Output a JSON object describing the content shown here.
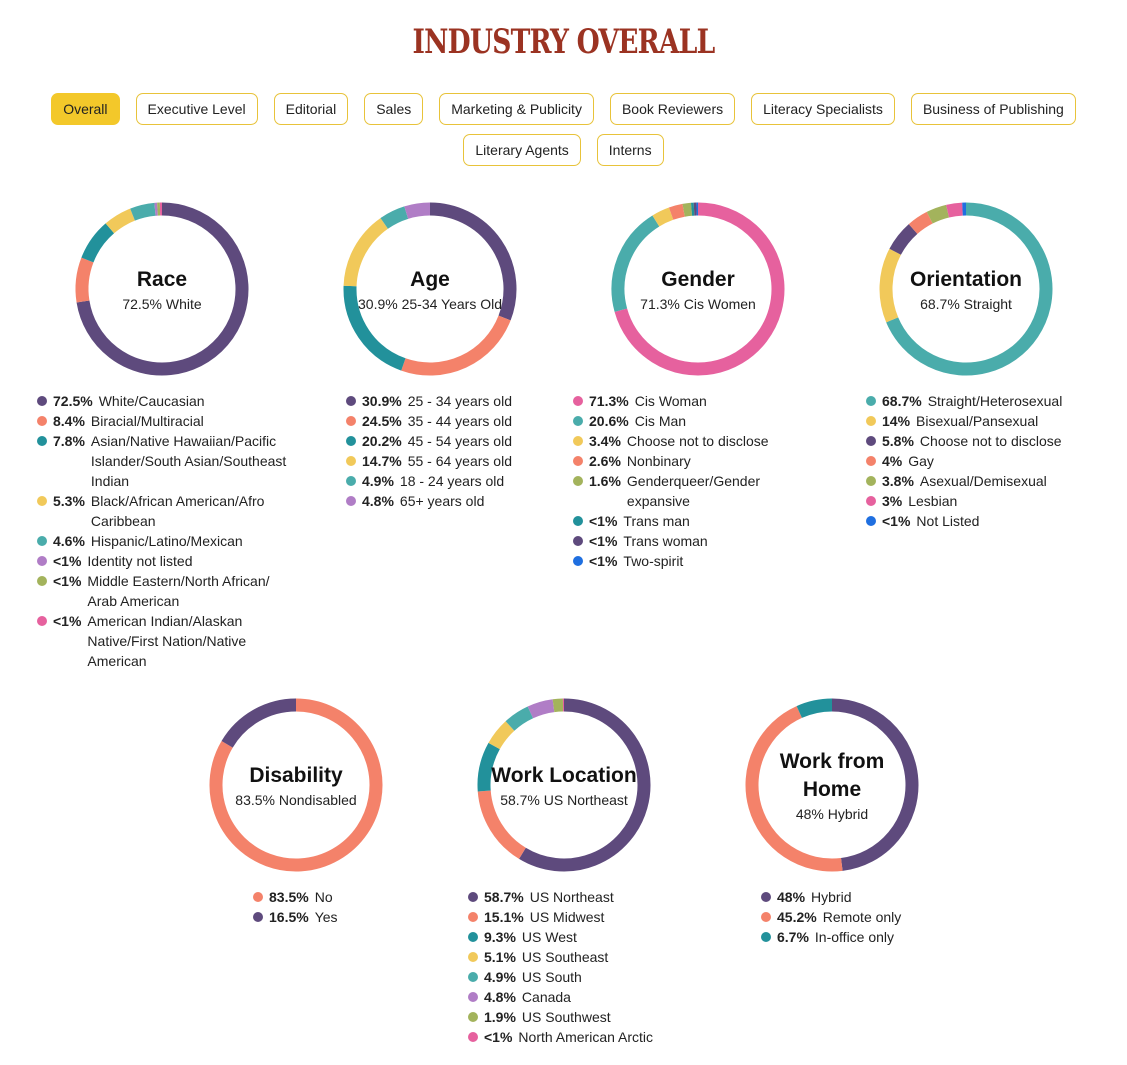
{
  "page": {
    "title": "INDUSTRY OVERALL",
    "tabs_row1": [
      "Overall",
      "Executive Level",
      "Editorial",
      "Sales",
      "Marketing & Publicity",
      "Book Reviewers",
      "Literacy Specialists",
      "Business of Publishing"
    ],
    "tabs_row2": [
      "Literary Agents",
      "Interns"
    ],
    "active_tab": "Overall"
  },
  "colors": {
    "purple": "#5e4a7d",
    "coral": "#f4826a",
    "teal_dark": "#22919b",
    "yellow": "#f1c95a",
    "teal": "#4aacab",
    "lilac": "#b07dc6",
    "olive": "#a3b35c",
    "pink": "#e6619e",
    "blue": "#1f6fe0",
    "title": "#9b3322",
    "tab_border": "#e8c33a",
    "tab_active": "#f3c82a"
  },
  "chart_data": [
    {
      "type": "pie",
      "title": "Race",
      "subtitle": "72.5% White",
      "slices": [
        {
          "pct": "72.5%",
          "value": 72.5,
          "label": "White/Caucasian",
          "color": "#5e4a7d"
        },
        {
          "pct": "8.4%",
          "value": 8.4,
          "label": "Biracial/Multiracial",
          "color": "#f4826a"
        },
        {
          "pct": "7.8%",
          "value": 7.8,
          "label": "Asian/Native Hawaiian/Pacific Islander/South Asian/Southeast Indian",
          "color": "#22919b"
        },
        {
          "pct": "5.3%",
          "value": 5.3,
          "label": "Black/African American/Afro Caribbean",
          "color": "#f1c95a"
        },
        {
          "pct": "4.6%",
          "value": 4.6,
          "label": "Hispanic/Latino/Mexican",
          "color": "#4aacab"
        },
        {
          "pct": "<1%",
          "value": 0.5,
          "label": "Identity not listed",
          "color": "#b07dc6"
        },
        {
          "pct": "<1%",
          "value": 0.5,
          "label": "Middle Eastern/North African/ Arab American",
          "color": "#a3b35c"
        },
        {
          "pct": "<1%",
          "value": 0.4,
          "label": "American Indian/Alaskan Native/First Nation/Native American",
          "color": "#e6619e"
        }
      ]
    },
    {
      "type": "pie",
      "title": "Age",
      "subtitle": "30.9% 25-34 Years Old",
      "slices": [
        {
          "pct": "30.9%",
          "value": 30.9,
          "label": "25 - 34 years old",
          "color": "#5e4a7d"
        },
        {
          "pct": "24.5%",
          "value": 24.5,
          "label": "35 - 44 years old",
          "color": "#f4826a"
        },
        {
          "pct": "20.2%",
          "value": 20.2,
          "label": "45 - 54 years old",
          "color": "#22919b"
        },
        {
          "pct": "14.7%",
          "value": 14.7,
          "label": "55 - 64 years old",
          "color": "#f1c95a"
        },
        {
          "pct": "4.9%",
          "value": 4.9,
          "label": "18 - 24 years old",
          "color": "#4aacab"
        },
        {
          "pct": "4.8%",
          "value": 4.8,
          "label": "65+ years old",
          "color": "#b07dc6"
        }
      ]
    },
    {
      "type": "pie",
      "title": "Gender",
      "subtitle": "71.3% Cis Women",
      "slices": [
        {
          "pct": "71.3%",
          "value": 71.3,
          "label": "Cis Woman",
          "color": "#e6619e"
        },
        {
          "pct": "20.6%",
          "value": 20.6,
          "label": "Cis Man",
          "color": "#4aacab"
        },
        {
          "pct": "3.4%",
          "value": 3.4,
          "label": "Choose not to disclose",
          "color": "#f1c95a"
        },
        {
          "pct": "2.6%",
          "value": 2.6,
          "label": "Nonbinary",
          "color": "#f4826a"
        },
        {
          "pct": "1.6%",
          "value": 1.6,
          "label": "Genderqueer/Gender expansive",
          "color": "#a3b35c"
        },
        {
          "pct": "<1%",
          "value": 0.5,
          "label": "Trans man",
          "color": "#22919b"
        },
        {
          "pct": "<1%",
          "value": 0.5,
          "label": "Trans woman",
          "color": "#5e4a7d"
        },
        {
          "pct": "<1%",
          "value": 0.3,
          "label": "Two-spirit",
          "color": "#1f6fe0"
        }
      ]
    },
    {
      "type": "pie",
      "title": "Orientation",
      "subtitle": "68.7% Straight",
      "slices": [
        {
          "pct": "68.7%",
          "value": 68.7,
          "label": "Straight/Heterosexual",
          "color": "#4aacab"
        },
        {
          "pct": "14%",
          "value": 14,
          "label": "Bisexual/Pansexual",
          "color": "#f1c95a"
        },
        {
          "pct": "5.8%",
          "value": 5.8,
          "label": "Choose not to disclose",
          "color": "#5e4a7d"
        },
        {
          "pct": "4%",
          "value": 4,
          "label": "Gay",
          "color": "#f4826a"
        },
        {
          "pct": "3.8%",
          "value": 3.8,
          "label": "Asexual/Demisexual",
          "color": "#a3b35c"
        },
        {
          "pct": "3%",
          "value": 3,
          "label": "Lesbian",
          "color": "#e6619e"
        },
        {
          "pct": "<1%",
          "value": 0.7,
          "label": "Not Listed",
          "color": "#1f6fe0"
        }
      ]
    },
    {
      "type": "pie",
      "title": "Disability",
      "subtitle": "83.5% Nondisabled",
      "slices": [
        {
          "pct": "83.5%",
          "value": 83.5,
          "label": "No",
          "color": "#f4826a"
        },
        {
          "pct": "16.5%",
          "value": 16.5,
          "label": "Yes",
          "color": "#5e4a7d"
        }
      ]
    },
    {
      "type": "pie",
      "title": "Work Location",
      "subtitle": "58.7% US Northeast",
      "slices": [
        {
          "pct": "58.7%",
          "value": 58.7,
          "label": "US Northeast",
          "color": "#5e4a7d"
        },
        {
          "pct": "15.1%",
          "value": 15.1,
          "label": "US Midwest",
          "color": "#f4826a"
        },
        {
          "pct": "9.3%",
          "value": 9.3,
          "label": "US West",
          "color": "#22919b"
        },
        {
          "pct": "5.1%",
          "value": 5.1,
          "label": "US Southeast",
          "color": "#f1c95a"
        },
        {
          "pct": "4.9%",
          "value": 4.9,
          "label": "US South",
          "color": "#4aacab"
        },
        {
          "pct": "4.8%",
          "value": 4.8,
          "label": "Canada",
          "color": "#b07dc6"
        },
        {
          "pct": "1.9%",
          "value": 1.9,
          "label": "US Southwest",
          "color": "#a3b35c"
        },
        {
          "pct": "<1%",
          "value": 0.2,
          "label": "North American Arctic",
          "color": "#e6619e"
        }
      ]
    },
    {
      "type": "pie",
      "title": "Work from Home",
      "subtitle": "48% Hybrid",
      "slices": [
        {
          "pct": "48%",
          "value": 48,
          "label": "Hybrid",
          "color": "#5e4a7d"
        },
        {
          "pct": "45.2%",
          "value": 45.2,
          "label": "Remote only",
          "color": "#f4826a"
        },
        {
          "pct": "6.7%",
          "value": 6.7,
          "label": "In-office only",
          "color": "#22919b"
        }
      ]
    }
  ]
}
